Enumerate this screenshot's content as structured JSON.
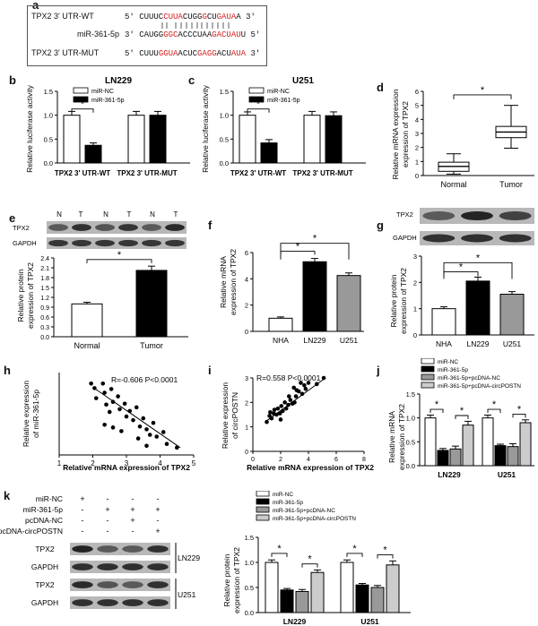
{
  "a": {
    "label": "a",
    "rows": [
      {
        "name": "TPX2 3' UTR-WT",
        "prefix": "5' ",
        "seq": [
          [
            "CUUUC",
            0
          ],
          [
            "CUUA",
            1
          ],
          [
            "CUGG",
            0
          ],
          [
            "G",
            1
          ],
          [
            "CU",
            0
          ],
          [
            "GAUA",
            1
          ],
          [
            "A",
            0
          ]
        ],
        "suffix": " 3'"
      },
      {
        "name": "miR-361-5p",
        "prefix": "3' ",
        "seq": [
          [
            "CAUGG",
            0
          ],
          [
            "GGC",
            1
          ],
          [
            "ACCCUA",
            0
          ],
          [
            "A",
            0
          ],
          [
            "GACUAU",
            1
          ],
          [
            "U",
            0
          ]
        ],
        "suffix": " 5'"
      },
      {
        "name": "TPX2 3' UTR-MUT",
        "prefix": "5' ",
        "seq": [
          [
            "CUUU",
            0
          ],
          [
            "GGUA",
            1
          ],
          [
            "ACUC",
            0
          ],
          [
            "GAGG",
            1
          ],
          [
            "ACU",
            0
          ],
          [
            "AUA",
            1
          ]
        ],
        "suffix": " 3'"
      }
    ]
  },
  "b": {
    "label": "b",
    "title": "LN229",
    "ylabel": "Relative luciferase activity",
    "legend": [
      "miR-NC",
      "miR-361-5p"
    ],
    "yticks": [
      "0.0",
      "0.5",
      "1.0",
      "1.5"
    ],
    "categories": [
      "TPX2 3' UTR-WT",
      "TPX2 3' UTR-MUT"
    ],
    "sig": "*"
  },
  "c": {
    "label": "c",
    "title": "U251",
    "ylabel": "Relative luciferase activity",
    "legend": [
      "miR-NC",
      "miR-361-5p"
    ],
    "yticks": [
      "0.0",
      "0.5",
      "1.0",
      "1.5"
    ],
    "categories": [
      "TPX2 3' UTR-WT",
      "TPX2 3' UTR-MUT"
    ],
    "sig": "*"
  },
  "d": {
    "label": "d",
    "ylabel": "Relative mRNA expression of TPX2",
    "yticks": [
      "0",
      "1",
      "2",
      "3",
      "4",
      "5",
      "6"
    ],
    "categories": [
      "Normal",
      "Tumor"
    ],
    "sig": "*"
  },
  "e": {
    "label": "e",
    "lanes": [
      "N",
      "T",
      "N",
      "T",
      "N",
      "T"
    ],
    "bands": [
      "TPX2",
      "GAPDH"
    ],
    "ylabel": "Relative protein expression of TPX2",
    "yticks": [
      "0.0",
      "0.3",
      "0.6",
      "0.9",
      "1.2",
      "1.5",
      "1.8",
      "2.1",
      "2.4"
    ],
    "categories": [
      "Normal",
      "Tumor"
    ],
    "sig": "*"
  },
  "f": {
    "label": "f",
    "ylabel": "Relative mRNA expression of TPX2",
    "yticks": [
      "0",
      "2",
      "4",
      "6"
    ],
    "categories": [
      "NHA",
      "LN229",
      "U251"
    ],
    "sig": [
      "*",
      "*"
    ]
  },
  "g": {
    "label": "g",
    "bands": [
      "TPX2",
      "GAPDH"
    ],
    "ylabel": "Relative protein expression of TPX2",
    "yticks": [
      "0",
      "1",
      "2",
      "3"
    ],
    "categories": [
      "NHA",
      "LN229",
      "U251"
    ],
    "sig": [
      "*",
      "*"
    ]
  },
  "h": {
    "label": "h",
    "annotation": "R=-0.606  P<0.0001",
    "xlabel": "Relative mRNA expression of TPX2",
    "ylabel": "Relative expression of miR-361-5p",
    "xticks": [
      "1",
      "2",
      "3",
      "4",
      "5"
    ]
  },
  "i": {
    "label": "i",
    "annotation": "R=0.558  P<0.0001",
    "xlabel": "Relative mRNA expression of TPX2",
    "ylabel": "Relative expression of circPOSTN",
    "xticks": [
      "0",
      "2",
      "4",
      "6",
      "8"
    ],
    "yticks": [
      "0",
      "1",
      "2",
      "3"
    ]
  },
  "j": {
    "label": "j",
    "ylabel": "Relative mRNA expression of TPX2",
    "legend": [
      "miR-NC",
      "miR-361-5p",
      "miR-361-5p+pcDNA-NC",
      "miR-361-5p+pcDNA-circPOSTN"
    ],
    "yticks": [
      "0.0",
      "0.5",
      "1.0",
      "1.5"
    ],
    "categories": [
      "LN229",
      "U251"
    ]
  },
  "k": {
    "label": "k",
    "conditions": [
      {
        "name": "miR-NC",
        "signs": [
          "+",
          "-",
          "-",
          "-"
        ]
      },
      {
        "name": "miR-361-5p",
        "signs": [
          "-",
          "+",
          "+",
          "+"
        ]
      },
      {
        "name": "pcDNA-NC",
        "signs": [
          "-",
          "-",
          "+",
          "-"
        ]
      },
      {
        "name": "pcDNA-circPOSTN",
        "signs": [
          "-",
          "-",
          "-",
          "+"
        ]
      }
    ],
    "blots": [
      {
        "band": "TPX2"
      },
      {
        "band": "GAPDH"
      },
      {
        "band": "TPX2"
      },
      {
        "band": "GAPDH"
      }
    ],
    "cell_lines": [
      "LN229",
      "U251"
    ],
    "ylabel": "Relative protein expression of TPX2",
    "legend": [
      "miR-NC",
      "miR-361-5p",
      "miR-361-5p+pcDNA-NC",
      "miR-361-5p+pcDNA-circPOSTN"
    ],
    "yticks": [
      "0.0",
      "0.5",
      "1.0",
      "1.5"
    ],
    "categories": [
      "LN229",
      "U251"
    ]
  },
  "chart_data": [
    {
      "panel": "b",
      "type": "bar",
      "categories": [
        "TPX2 3' UTR-WT",
        "TPX2 3' UTR-MUT"
      ],
      "ylim": [
        0,
        1.5
      ],
      "series": [
        {
          "name": "miR-NC",
          "values": [
            1.0,
            1.0
          ],
          "errors": [
            0.08,
            0.08
          ]
        },
        {
          "name": "miR-361-5p",
          "values": [
            0.37,
            1.0
          ],
          "errors": [
            0.05,
            0.08
          ]
        }
      ]
    },
    {
      "panel": "c",
      "type": "bar",
      "categories": [
        "TPX2 3' UTR-WT",
        "TPX2 3' UTR-MUT"
      ],
      "ylim": [
        0,
        1.5
      ],
      "series": [
        {
          "name": "miR-NC",
          "values": [
            1.0,
            1.0
          ],
          "errors": [
            0.07,
            0.08
          ]
        },
        {
          "name": "miR-361-5p",
          "values": [
            0.42,
            0.99
          ],
          "errors": [
            0.07,
            0.08
          ]
        }
      ]
    },
    {
      "panel": "d",
      "type": "box",
      "categories": [
        "Normal",
        "Tumor"
      ],
      "ylim": [
        0,
        6
      ],
      "boxes": [
        {
          "min": 0.1,
          "q1": 0.3,
          "median": 0.65,
          "q3": 0.95,
          "max": 1.55
        },
        {
          "min": 1.95,
          "q1": 2.7,
          "median": 3.1,
          "q3": 3.5,
          "max": 5.0
        }
      ]
    },
    {
      "panel": "e",
      "type": "bar",
      "categories": [
        "Normal",
        "Tumor"
      ],
      "ylim": [
        0,
        2.4
      ],
      "series": [
        {
          "values": [
            1.0,
            2.02
          ],
          "errors": [
            0.05,
            0.13
          ]
        }
      ]
    },
    {
      "panel": "f",
      "type": "bar",
      "categories": [
        "NHA",
        "LN229",
        "U251"
      ],
      "ylim": [
        0,
        6
      ],
      "series": [
        {
          "values": [
            1.0,
            5.3,
            4.25
          ],
          "errors": [
            0.1,
            0.25,
            0.2
          ]
        }
      ]
    },
    {
      "panel": "g",
      "type": "bar",
      "categories": [
        "NHA",
        "LN229",
        "U251"
      ],
      "ylim": [
        0,
        3
      ],
      "series": [
        {
          "values": [
            1.0,
            2.05,
            1.55
          ],
          "errors": [
            0.07,
            0.15,
            0.1
          ]
        }
      ]
    },
    {
      "panel": "h",
      "type": "scatter",
      "xlim": [
        1,
        5
      ],
      "ylim": [
        0,
        0.9
      ],
      "points": [
        [
          1.95,
          0.78
        ],
        [
          2.05,
          0.73
        ],
        [
          2.3,
          0.78
        ],
        [
          2.1,
          0.62
        ],
        [
          2.35,
          0.68
        ],
        [
          2.4,
          0.55
        ],
        [
          2.55,
          0.72
        ],
        [
          2.6,
          0.58
        ],
        [
          2.75,
          0.64
        ],
        [
          2.5,
          0.47
        ],
        [
          2.8,
          0.5
        ],
        [
          2.95,
          0.56
        ],
        [
          3.0,
          0.42
        ],
        [
          3.1,
          0.48
        ],
        [
          3.2,
          0.38
        ],
        [
          2.35,
          0.33
        ],
        [
          2.6,
          0.3
        ],
        [
          3.3,
          0.52
        ],
        [
          3.4,
          0.31
        ],
        [
          3.5,
          0.4
        ],
        [
          3.6,
          0.28
        ],
        [
          3.7,
          0.22
        ],
        [
          3.8,
          0.35
        ],
        [
          3.9,
          0.2
        ],
        [
          3.35,
          0.18
        ],
        [
          4.1,
          0.25
        ],
        [
          4.2,
          0.12
        ],
        [
          4.5,
          0.08
        ],
        [
          2.85,
          0.26
        ],
        [
          3.6,
          0.1
        ]
      ],
      "fit": [
        [
          2.0,
          0.74
        ],
        [
          4.6,
          0.08
        ]
      ]
    },
    {
      "panel": "i",
      "type": "scatter",
      "xlim": [
        0,
        8
      ],
      "ylim": [
        0,
        3
      ],
      "points": [
        [
          1.0,
          1.2
        ],
        [
          1.2,
          1.45
        ],
        [
          1.35,
          1.35
        ],
        [
          1.5,
          1.55
        ],
        [
          1.55,
          1.7
        ],
        [
          1.7,
          1.5
        ],
        [
          1.8,
          1.75
        ],
        [
          1.95,
          1.55
        ],
        [
          2.05,
          1.85
        ],
        [
          2.15,
          1.65
        ],
        [
          2.3,
          2.0
        ],
        [
          2.4,
          1.75
        ],
        [
          2.55,
          1.9
        ],
        [
          2.6,
          2.25
        ],
        [
          2.7,
          2.1
        ],
        [
          2.85,
          1.95
        ],
        [
          2.95,
          2.6
        ],
        [
          3.1,
          2.25
        ],
        [
          3.15,
          2.5
        ],
        [
          3.3,
          2.45
        ],
        [
          3.45,
          2.8
        ],
        [
          3.55,
          2.35
        ],
        [
          3.7,
          2.7
        ],
        [
          3.8,
          2.55
        ],
        [
          4.0,
          2.8
        ],
        [
          4.6,
          2.75
        ],
        [
          5.1,
          3.0
        ],
        [
          1.25,
          1.6
        ],
        [
          2.0,
          1.3
        ],
        [
          3.0,
          2.0
        ]
      ],
      "fit": [
        [
          1.0,
          1.25
        ],
        [
          5.1,
          2.95
        ]
      ]
    },
    {
      "panel": "j",
      "type": "bar",
      "categories": [
        "LN229",
        "U251"
      ],
      "ylim": [
        0,
        1.5
      ],
      "series": [
        {
          "name": "miR-NC",
          "values": [
            1.0,
            1.0
          ],
          "errors": [
            0.06,
            0.06
          ]
        },
        {
          "name": "miR-361-5p",
          "values": [
            0.32,
            0.42
          ],
          "errors": [
            0.04,
            0.03
          ]
        },
        {
          "name": "miR-361-5p+pcDNA-NC",
          "values": [
            0.35,
            0.4
          ],
          "errors": [
            0.06,
            0.06
          ]
        },
        {
          "name": "miR-361-5p+pcDNA-circPOSTN",
          "values": [
            0.85,
            0.9
          ],
          "errors": [
            0.08,
            0.06
          ]
        }
      ]
    },
    {
      "panel": "k",
      "type": "bar",
      "categories": [
        "LN229",
        "U251"
      ],
      "ylim": [
        0,
        1.5
      ],
      "series": [
        {
          "name": "miR-NC",
          "values": [
            1.0,
            1.0
          ],
          "errors": [
            0.05,
            0.05
          ]
        },
        {
          "name": "miR-361-5p",
          "values": [
            0.45,
            0.55
          ],
          "errors": [
            0.03,
            0.03
          ]
        },
        {
          "name": "miR-361-5p+pcDNA-NC",
          "values": [
            0.42,
            0.5
          ],
          "errors": [
            0.04,
            0.04
          ]
        },
        {
          "name": "miR-361-5p+pcDNA-circPOSTN",
          "values": [
            0.8,
            0.95
          ],
          "errors": [
            0.05,
            0.08
          ]
        }
      ]
    }
  ]
}
